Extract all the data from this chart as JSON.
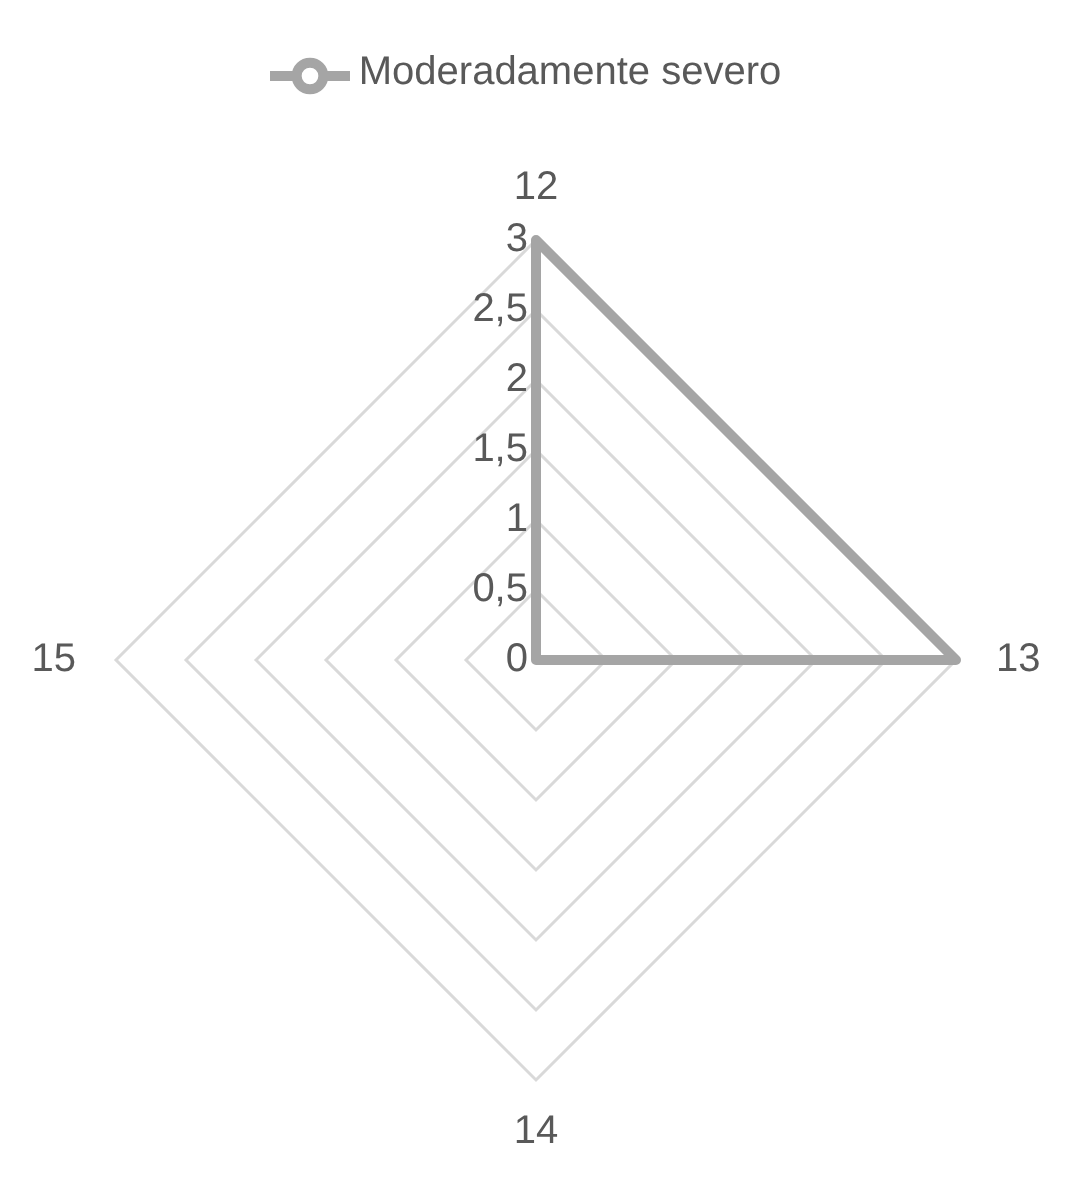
{
  "chart_data": {
    "type": "radar",
    "categories": [
      "12",
      "13",
      "14",
      "15"
    ],
    "series": [
      {
        "name": "Moderadamente severo",
        "color": "#a5a5a5",
        "values": [
          3,
          3,
          0,
          0
        ]
      }
    ],
    "ylim": [
      0,
      3
    ],
    "yticks": [
      0,
      {
        "value": 0.5,
        "label": "0,5"
      },
      1,
      {
        "value": 1.5,
        "label": "1,5"
      },
      2,
      {
        "value": 2.5,
        "label": "2,5"
      },
      3
    ],
    "grid": true,
    "legend": "top",
    "marker": "none"
  }
}
